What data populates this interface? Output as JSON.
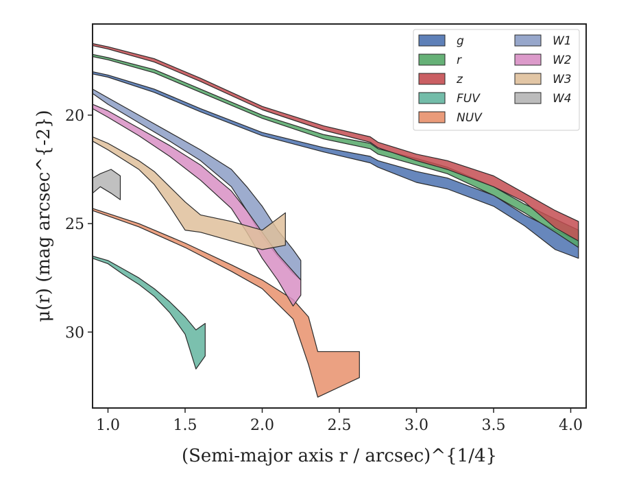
{
  "chart_data": {
    "type": "area",
    "xlabel": "(Semi-major axis r / arcsec)^{1/4}",
    "ylabel": "μ(r) (mag arcsec^{-2})",
    "xlim": [
      0.9,
      4.1
    ],
    "ylim": [
      33.5,
      15.8
    ],
    "y_inverted": true,
    "x_ticks": [
      1.0,
      1.5,
      2.0,
      2.5,
      3.0,
      3.5,
      4.0
    ],
    "x_tick_labels": [
      "1.0",
      "1.5",
      "2.0",
      "2.5",
      "3.0",
      "3.5",
      "4.0"
    ],
    "y_ticks": [
      20,
      25,
      30
    ],
    "y_tick_labels": [
      "20",
      "25",
      "30"
    ],
    "grid": false,
    "legend_position": "top-right",
    "legend_columns": 2,
    "series": [
      {
        "name": "g",
        "color": "#4C72B0",
        "upper": [
          [
            0.9,
            18.0
          ],
          [
            1.0,
            18.15
          ],
          [
            1.3,
            18.8
          ],
          [
            1.6,
            19.7
          ],
          [
            2.0,
            20.8
          ],
          [
            2.4,
            21.5
          ],
          [
            2.7,
            21.9
          ],
          [
            2.75,
            22.1
          ],
          [
            3.0,
            22.6
          ],
          [
            3.2,
            22.9
          ],
          [
            3.5,
            23.7
          ],
          [
            3.7,
            24.6
          ],
          [
            3.9,
            25.3
          ],
          [
            4.05,
            25.8
          ]
        ],
        "lower": [
          [
            0.9,
            18.1
          ],
          [
            1.0,
            18.25
          ],
          [
            1.3,
            18.95
          ],
          [
            1.6,
            19.85
          ],
          [
            2.0,
            20.95
          ],
          [
            2.4,
            21.7
          ],
          [
            2.7,
            22.2
          ],
          [
            2.75,
            22.4
          ],
          [
            3.0,
            23.1
          ],
          [
            3.2,
            23.4
          ],
          [
            3.5,
            24.2
          ],
          [
            3.7,
            25.1
          ],
          [
            3.9,
            26.2
          ],
          [
            4.05,
            26.6
          ]
        ]
      },
      {
        "name": "r",
        "color": "#55A868",
        "upper": [
          [
            0.9,
            17.2
          ],
          [
            1.0,
            17.35
          ],
          [
            1.3,
            17.9
          ],
          [
            1.6,
            18.8
          ],
          [
            2.0,
            20.0
          ],
          [
            2.4,
            20.9
          ],
          [
            2.7,
            21.3
          ],
          [
            2.75,
            21.55
          ],
          [
            3.0,
            22.0
          ],
          [
            3.2,
            22.4
          ],
          [
            3.5,
            23.3
          ],
          [
            3.7,
            24.1
          ],
          [
            3.9,
            24.8
          ],
          [
            4.05,
            25.3
          ]
        ],
        "lower": [
          [
            0.9,
            17.3
          ],
          [
            1.0,
            17.45
          ],
          [
            1.3,
            18.05
          ],
          [
            1.6,
            18.95
          ],
          [
            2.0,
            20.15
          ],
          [
            2.4,
            21.1
          ],
          [
            2.7,
            21.55
          ],
          [
            2.75,
            21.8
          ],
          [
            3.0,
            22.3
          ],
          [
            3.2,
            22.7
          ],
          [
            3.5,
            23.7
          ],
          [
            3.7,
            24.5
          ],
          [
            3.9,
            25.4
          ],
          [
            4.05,
            26.1
          ]
        ]
      },
      {
        "name": "z",
        "color": "#C44E52",
        "upper": [
          [
            0.9,
            16.7
          ],
          [
            1.0,
            16.85
          ],
          [
            1.3,
            17.4
          ],
          [
            1.6,
            18.3
          ],
          [
            2.0,
            19.6
          ],
          [
            2.4,
            20.5
          ],
          [
            2.7,
            21.0
          ],
          [
            2.75,
            21.25
          ],
          [
            3.0,
            21.8
          ],
          [
            3.2,
            22.1
          ],
          [
            3.5,
            22.8
          ],
          [
            3.7,
            23.6
          ],
          [
            3.9,
            24.4
          ],
          [
            4.05,
            24.9
          ]
        ],
        "lower": [
          [
            0.9,
            16.8
          ],
          [
            1.0,
            16.95
          ],
          [
            1.3,
            17.55
          ],
          [
            1.6,
            18.45
          ],
          [
            2.0,
            19.75
          ],
          [
            2.4,
            20.7
          ],
          [
            2.7,
            21.25
          ],
          [
            2.75,
            21.5
          ],
          [
            3.0,
            22.1
          ],
          [
            3.2,
            22.5
          ],
          [
            3.5,
            23.3
          ],
          [
            3.7,
            24.0
          ],
          [
            3.9,
            25.2
          ],
          [
            4.05,
            25.8
          ]
        ]
      },
      {
        "name": "FUV",
        "color": "#64B5A0",
        "upper": [
          [
            0.9,
            26.5
          ],
          [
            1.0,
            26.7
          ],
          [
            1.1,
            27.1
          ],
          [
            1.2,
            27.5
          ],
          [
            1.3,
            28.0
          ],
          [
            1.4,
            28.6
          ],
          [
            1.5,
            29.3
          ],
          [
            1.57,
            29.9
          ],
          [
            1.63,
            29.6
          ]
        ],
        "lower": [
          [
            0.9,
            26.6
          ],
          [
            1.0,
            26.85
          ],
          [
            1.1,
            27.35
          ],
          [
            1.2,
            27.8
          ],
          [
            1.3,
            28.35
          ],
          [
            1.4,
            29.1
          ],
          [
            1.5,
            30.1
          ],
          [
            1.57,
            31.7
          ],
          [
            1.63,
            31.1
          ]
        ]
      },
      {
        "name": "NUV",
        "color": "#E8906C",
        "upper": [
          [
            0.9,
            24.3
          ],
          [
            1.2,
            25.0
          ],
          [
            1.5,
            25.9
          ],
          [
            1.8,
            26.9
          ],
          [
            2.0,
            27.6
          ],
          [
            2.2,
            28.5
          ],
          [
            2.3,
            29.3
          ],
          [
            2.36,
            30.9
          ],
          [
            2.63,
            30.9
          ]
        ],
        "lower": [
          [
            0.9,
            24.4
          ],
          [
            1.2,
            25.15
          ],
          [
            1.5,
            26.1
          ],
          [
            1.8,
            27.2
          ],
          [
            2.0,
            28.0
          ],
          [
            2.2,
            29.4
          ],
          [
            2.3,
            31.5
          ],
          [
            2.36,
            33.0
          ],
          [
            2.63,
            32.1
          ]
        ]
      },
      {
        "name": "W1",
        "color": "#8C9DC5",
        "upper": [
          [
            0.9,
            18.8
          ],
          [
            1.0,
            19.2
          ],
          [
            1.2,
            20.0
          ],
          [
            1.4,
            20.8
          ],
          [
            1.6,
            21.6
          ],
          [
            1.8,
            22.5
          ],
          [
            1.9,
            23.3
          ],
          [
            2.0,
            24.2
          ],
          [
            2.1,
            25.3
          ],
          [
            2.2,
            26.2
          ],
          [
            2.25,
            26.7
          ]
        ],
        "lower": [
          [
            0.9,
            19.0
          ],
          [
            1.0,
            19.5
          ],
          [
            1.2,
            20.35
          ],
          [
            1.4,
            21.2
          ],
          [
            1.6,
            22.1
          ],
          [
            1.8,
            23.3
          ],
          [
            1.9,
            24.4
          ],
          [
            2.0,
            25.6
          ],
          [
            2.1,
            26.5
          ],
          [
            2.2,
            27.3
          ],
          [
            2.25,
            27.6
          ]
        ]
      },
      {
        "name": "W2",
        "color": "#D88FC4",
        "upper": [
          [
            0.9,
            19.5
          ],
          [
            1.0,
            19.8
          ],
          [
            1.2,
            20.6
          ],
          [
            1.4,
            21.4
          ],
          [
            1.6,
            22.3
          ],
          [
            1.8,
            23.5
          ],
          [
            1.9,
            24.4
          ],
          [
            2.0,
            25.4
          ],
          [
            2.1,
            26.4
          ],
          [
            2.2,
            27.2
          ],
          [
            2.25,
            27.6
          ]
        ],
        "lower": [
          [
            0.9,
            19.7
          ],
          [
            1.0,
            20.1
          ],
          [
            1.2,
            20.95
          ],
          [
            1.4,
            21.9
          ],
          [
            1.6,
            23.0
          ],
          [
            1.8,
            24.3
          ],
          [
            1.9,
            25.4
          ],
          [
            2.0,
            26.6
          ],
          [
            2.1,
            27.6
          ],
          [
            2.2,
            28.8
          ],
          [
            2.25,
            28.3
          ]
        ]
      },
      {
        "name": "W3",
        "color": "#DFC09B",
        "upper": [
          [
            0.9,
            21.0
          ],
          [
            1.0,
            21.3
          ],
          [
            1.2,
            22.1
          ],
          [
            1.3,
            22.6
          ],
          [
            1.4,
            23.3
          ],
          [
            1.5,
            24.0
          ],
          [
            1.6,
            24.6
          ],
          [
            1.8,
            24.9
          ],
          [
            2.0,
            25.3
          ],
          [
            2.15,
            24.5
          ]
        ],
        "lower": [
          [
            0.9,
            21.2
          ],
          [
            1.0,
            21.6
          ],
          [
            1.2,
            22.5
          ],
          [
            1.3,
            23.2
          ],
          [
            1.4,
            24.2
          ],
          [
            1.5,
            25.3
          ],
          [
            1.6,
            25.4
          ],
          [
            1.8,
            25.8
          ],
          [
            2.0,
            26.2
          ],
          [
            2.15,
            26.0
          ]
        ]
      },
      {
        "name": "W4",
        "color": "#B5B5B5",
        "upper": [
          [
            0.9,
            22.9
          ],
          [
            0.95,
            22.7
          ],
          [
            1.02,
            22.5
          ],
          [
            1.08,
            22.8
          ]
        ],
        "lower": [
          [
            0.9,
            23.6
          ],
          [
            0.95,
            23.3
          ],
          [
            1.02,
            23.6
          ],
          [
            1.08,
            23.9
          ]
        ]
      }
    ]
  }
}
